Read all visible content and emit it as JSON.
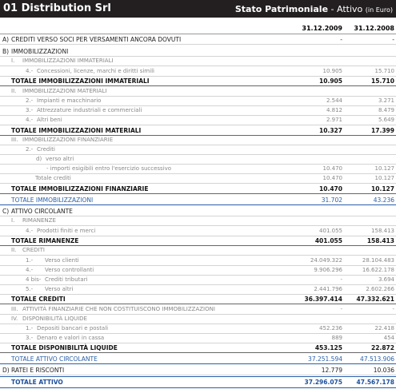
{
  "header": {
    "company": "01 Distribution Srl",
    "title": "Stato Patrimoniale",
    "subtitle": "- Attivo",
    "unit": "(in Euro)"
  },
  "columns": [
    "31.12.2009",
    "31.12.2008"
  ],
  "rows": [
    {
      "code": "A)",
      "label": "CREDITI VERSO SOCI PER VERSAMENTI ANCORA DOVUTI",
      "values": [
        "-",
        "-"
      ]
    },
    {
      "code": "B)",
      "label": "IMMOBILIZZAZIONI"
    },
    {
      "code": "I.",
      "label": "IMMOBILIZZAZIONI IMMATERIALI"
    },
    {
      "code": "4.-",
      "label": "Concessioni, licenze, marchi e diritti simili",
      "values": [
        "10.905",
        "15.710"
      ]
    },
    {
      "label": "TOTALE IMMOBILIZZAZIONI IMMATERIALI",
      "values": [
        "10.905",
        "15.710"
      ]
    },
    {
      "code": "II.",
      "label": "IMMOBILIZZAZIONI MATERIALI"
    },
    {
      "code": "2.-",
      "label": "Impianti e macchinario",
      "values": [
        "2.544",
        "3.271"
      ]
    },
    {
      "code": "3.-",
      "label": "Attrezzature industriali e commerciali",
      "values": [
        "4.812",
        "8.479"
      ]
    },
    {
      "code": "4.-",
      "label": "Altri beni",
      "values": [
        "2.971",
        "5.649"
      ]
    },
    {
      "label": "TOTALE IMMOBILIZZAZIONI MATERIALI",
      "values": [
        "10.327",
        "17.399"
      ]
    },
    {
      "code": "III.",
      "label": "IMMOBILIZZAZIONI FINANZIARIE"
    },
    {
      "code": "2.-",
      "label": "Crediti"
    },
    {
      "code": "d)",
      "label": "verso altri"
    },
    {
      "label": "- importi esigibili entro l'esercizio successivo",
      "values": [
        "10.470",
        "10.127"
      ]
    },
    {
      "label": "Totale crediti",
      "values": [
        "10.470",
        "10.127"
      ]
    },
    {
      "label": "TOTALE IMMOBILIZZAZIONI FINANZIARIE",
      "values": [
        "10.470",
        "10.127"
      ]
    },
    {
      "label": "TOTALE IMMOBILIZZAZIONI",
      "values": [
        "31.702",
        "43.236"
      ]
    },
    {
      "code": "C)",
      "label": "ATTIVO CIRCOLANTE"
    },
    {
      "code": "I.",
      "label": "RIMANENZE"
    },
    {
      "code": "4.-",
      "label": "Prodotti finiti e merci",
      "values": [
        "401.055",
        "158.413"
      ]
    },
    {
      "label": "TOTALE RIMANENZE",
      "values": [
        "401.055",
        "158.413"
      ]
    },
    {
      "code": "II.",
      "label": "CREDITI"
    },
    {
      "code": "1.-",
      "label": "Verso clienti",
      "values": [
        "24.049.322",
        "28.104.483"
      ]
    },
    {
      "code": "4.-",
      "label": "Verso controllanti",
      "values": [
        "9.906.296",
        "16.622.178"
      ]
    },
    {
      "code": "4 bis-",
      "label": "Crediti tributari",
      "values": [
        "-",
        "3.694"
      ]
    },
    {
      "code": "5.-",
      "label": "Verso altri",
      "values": [
        "2.441.796",
        "2.602.266"
      ]
    },
    {
      "label": "TOTALE CREDITI",
      "values": [
        "36.397.414",
        "47.332.621"
      ]
    },
    {
      "code": "III.",
      "label": "ATTIVITÀ FINANZIARIE CHE NON COSTITUISCONO IMMOBILIZZAZIONI",
      "values": [
        "-",
        "-"
      ]
    },
    {
      "code": "IV.",
      "label": "DISPONIBILITÀ LIQUIDE"
    },
    {
      "code": "1.-",
      "label": "Depositi bancari e postali",
      "values": [
        "452.236",
        "22.418"
      ]
    },
    {
      "code": "3.-",
      "label": "Denaro e valori in cassa",
      "values": [
        "889",
        "454"
      ]
    },
    {
      "label": "TOTALE DISPONIBILITÀ LIQUIDE",
      "values": [
        "453.125",
        "22.872"
      ]
    },
    {
      "label": "TOTALE ATTIVO CIRCOLANTE",
      "values": [
        "37.251.594",
        "47.513.906"
      ]
    },
    {
      "code": "D)",
      "label": "RATEI E RISCONTI",
      "values": [
        "12.779",
        "10.036"
      ]
    },
    {
      "label": "TOTALE ATTIVO",
      "values": [
        "37.296.075",
        "47.567.178"
      ]
    }
  ]
}
